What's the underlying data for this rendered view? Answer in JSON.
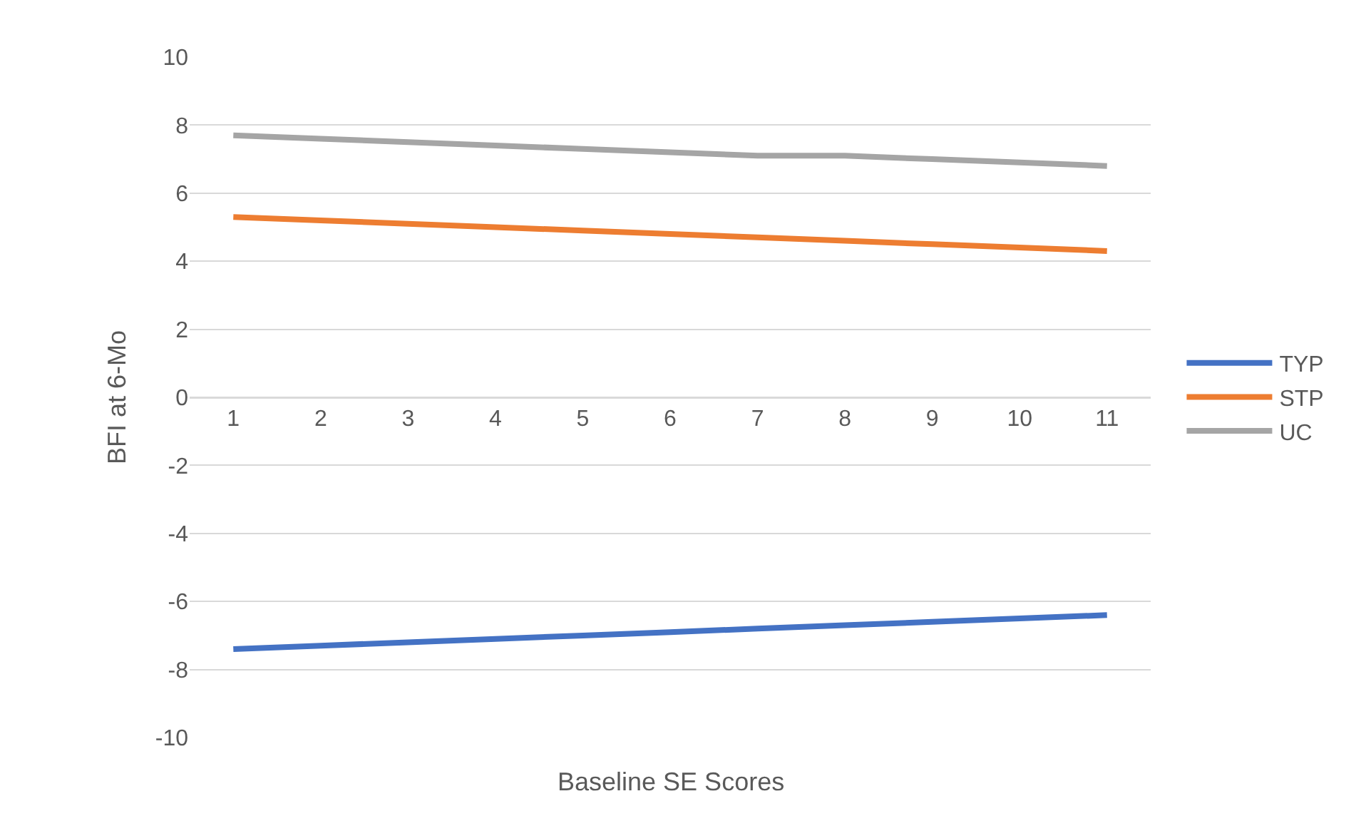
{
  "chart_data": {
    "type": "line",
    "xlabel": "Baseline SE Scores",
    "ylabel": "BFI at 6-Mo",
    "categories": [
      "1",
      "2",
      "3",
      "4",
      "5",
      "6",
      "7",
      "8",
      "9",
      "10",
      "11"
    ],
    "series": [
      {
        "name": "TYP",
        "color": "#4472c4",
        "values": [
          -7.4,
          -7.3,
          -7.2,
          -7.1,
          -7.0,
          -6.9,
          -6.8,
          -6.7,
          -6.6,
          -6.5,
          -6.4
        ]
      },
      {
        "name": "STP",
        "color": "#ed7d31",
        "values": [
          5.3,
          5.2,
          5.1,
          5.0,
          4.9,
          4.8,
          4.7,
          4.6,
          4.5,
          4.4,
          4.3
        ]
      },
      {
        "name": "UC",
        "color": "#a5a5a5",
        "values": [
          7.7,
          7.6,
          7.5,
          7.4,
          7.3,
          7.2,
          7.1,
          7.1,
          7.0,
          6.9,
          6.8
        ]
      }
    ],
    "ylim": [
      -10,
      10
    ],
    "yticks": [
      -10,
      -8,
      -6,
      -4,
      -2,
      0,
      2,
      4,
      6,
      8,
      10
    ],
    "grid": "y",
    "legend": "right",
    "marker": "none",
    "line_style": "solid"
  }
}
